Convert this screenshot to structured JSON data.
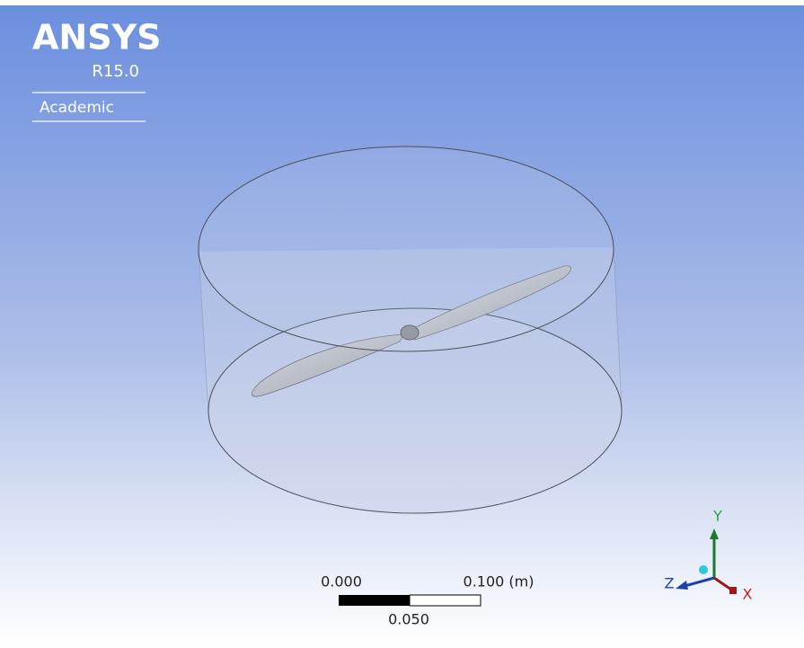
{
  "logo": {
    "brand": "ANSYS",
    "version": "R15.0",
    "license": "Academic"
  },
  "scale_bar": {
    "start_label": "0.000",
    "end_label": "0.100 (m)",
    "mid_label": "0.050"
  },
  "triad": {
    "y_label": "Y",
    "z_label": "Z",
    "x_label": "X"
  }
}
